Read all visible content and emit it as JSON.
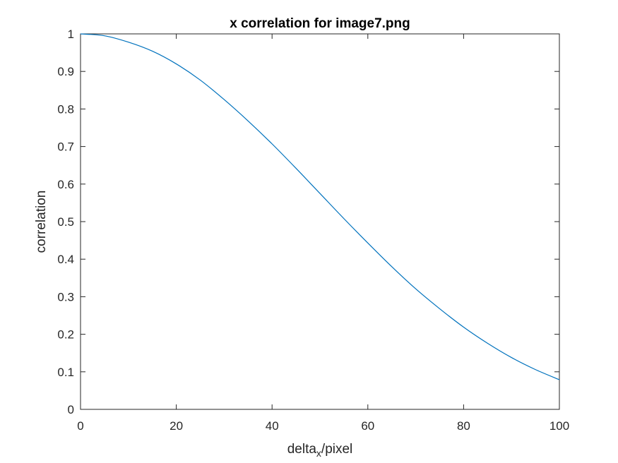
{
  "chart_data": {
    "type": "line",
    "title": "x correlation for image7.png",
    "xlabel_main": "delta",
    "xlabel_sub": "x",
    "xlabel_tail": "/pixel",
    "ylabel": "correlation",
    "xlim": [
      0,
      100
    ],
    "ylim": [
      0,
      1
    ],
    "xticks": [
      0,
      20,
      40,
      60,
      80,
      100
    ],
    "xtick_labels": [
      "0",
      "20",
      "40",
      "60",
      "80",
      "100"
    ],
    "yticks": [
      0,
      0.1,
      0.2,
      0.3,
      0.4,
      0.5,
      0.6,
      0.7,
      0.8,
      0.9,
      1
    ],
    "ytick_labels": [
      "0",
      "0.1",
      "0.2",
      "0.3",
      "0.4",
      "0.5",
      "0.6",
      "0.7",
      "0.8",
      "0.9",
      "1"
    ],
    "grid": false,
    "series": [
      {
        "color": "#0072bd",
        "x": [
          0,
          5,
          10,
          15,
          20,
          25,
          30,
          35,
          40,
          45,
          50,
          55,
          60,
          65,
          70,
          75,
          80,
          85,
          90,
          95,
          100
        ],
        "y": [
          1.0,
          0.995,
          0.978,
          0.954,
          0.92,
          0.877,
          0.825,
          0.768,
          0.707,
          0.642,
          0.575,
          0.508,
          0.443,
          0.38,
          0.321,
          0.268,
          0.219,
          0.176,
          0.138,
          0.106,
          0.079
        ]
      }
    ]
  }
}
